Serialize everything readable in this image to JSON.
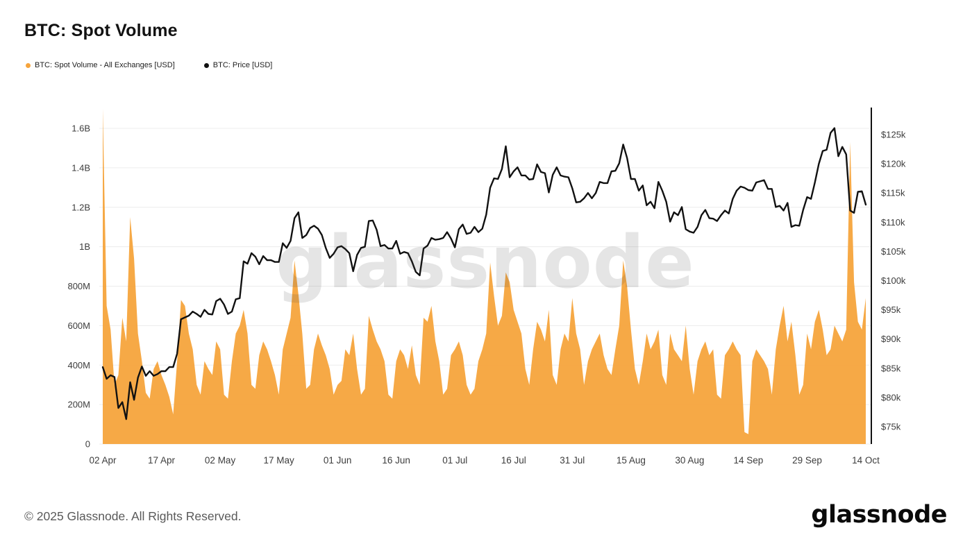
{
  "header": {
    "title": "BTC: Spot Volume"
  },
  "legend": [
    {
      "label": "BTC: Spot Volume - All Exchanges [USD]",
      "color": "#F6A43C"
    },
    {
      "label": "BTC: Price [USD]",
      "color": "#111111"
    }
  ],
  "watermark": "glassnode",
  "footer": {
    "copyright": "© 2025 Glassnode. All Rights Reserved.",
    "brand": "glassnode"
  },
  "chart_data": {
    "type": "area",
    "title": "BTC: Spot Volume",
    "grid": "horizontal-only",
    "legend_position": "top-left",
    "x_tick_labels": [
      "02 Apr",
      "17 Apr",
      "02 May",
      "17 May",
      "01 Jun",
      "16 Jun",
      "01 Jul",
      "16 Jul",
      "31 Jul",
      "15 Aug",
      "30 Aug",
      "14 Sep",
      "29 Sep",
      "14 Oct"
    ],
    "x_tick_indices": [
      0,
      15,
      30,
      45,
      60,
      75,
      90,
      105,
      120,
      135,
      150,
      165,
      180,
      195
    ],
    "volume_axis": {
      "side": "left",
      "unit": "USD",
      "ylim_millions": [
        0,
        1600
      ],
      "ticks": [
        0,
        200,
        400,
        600,
        800,
        1000,
        1200,
        1400,
        1600
      ],
      "tick_labels": [
        "0",
        "200M",
        "400M",
        "600M",
        "800M",
        "1B",
        "1.2B",
        "1.4B",
        "1.6B"
      ]
    },
    "price_axis": {
      "side": "right",
      "unit": "USD",
      "ylim_thousands": [
        75,
        125
      ],
      "ticks": [
        75,
        80,
        85,
        90,
        95,
        100,
        105,
        110,
        115,
        120,
        125
      ],
      "tick_labels": [
        "$75k",
        "$80k",
        "$85k",
        "$90k",
        "$95k",
        "$100k",
        "$105k",
        "$110k",
        "$115k",
        "$120k",
        "$125k"
      ]
    },
    "series": [
      {
        "name": "BTC: Spot Volume - All Exchanges [USD]",
        "type": "area",
        "color": "#F6A43C",
        "unit": "millions USD",
        "values": [
          1700,
          700,
          580,
          300,
          350,
          640,
          520,
          1150,
          940,
          560,
          420,
          260,
          230,
          380,
          420,
          350,
          300,
          240,
          150,
          420,
          730,
          700,
          560,
          480,
          300,
          250,
          420,
          380,
          350,
          520,
          480,
          250,
          230,
          420,
          560,
          600,
          680,
          560,
          300,
          280,
          450,
          520,
          480,
          420,
          350,
          250,
          480,
          560,
          640,
          930,
          760,
          560,
          280,
          300,
          480,
          560,
          500,
          450,
          380,
          250,
          300,
          320,
          480,
          450,
          560,
          380,
          250,
          280,
          650,
          580,
          520,
          480,
          420,
          250,
          230,
          420,
          480,
          450,
          380,
          500,
          350,
          300,
          640,
          620,
          700,
          520,
          420,
          250,
          280,
          450,
          480,
          520,
          450,
          300,
          250,
          280,
          420,
          480,
          560,
          920,
          750,
          600,
          650,
          870,
          820,
          680,
          620,
          560,
          380,
          300,
          480,
          620,
          580,
          520,
          680,
          350,
          300,
          480,
          560,
          520,
          740,
          560,
          480,
          300,
          420,
          480,
          520,
          560,
          450,
          380,
          350,
          480,
          600,
          930,
          800,
          580,
          380,
          300,
          420,
          560,
          480,
          520,
          580,
          350,
          300,
          560,
          480,
          450,
          420,
          600,
          380,
          250,
          420,
          480,
          520,
          450,
          480,
          250,
          230,
          450,
          480,
          520,
          480,
          450,
          60,
          50,
          420,
          480,
          450,
          420,
          380,
          250,
          480,
          600,
          700,
          520,
          620,
          450,
          250,
          300,
          560,
          480,
          620,
          680,
          580,
          450,
          480,
          600,
          560,
          520,
          580,
          1530,
          820,
          620,
          580,
          740
        ]
      },
      {
        "name": "BTC: Price [USD]",
        "type": "line",
        "color": "#111111",
        "unit": "thousands USD",
        "values": [
          85.2,
          83.2,
          83.8,
          83.5,
          78.2,
          79.2,
          76.3,
          82.6,
          79.6,
          83.4,
          85.3,
          83.7,
          84.5,
          83.7,
          84.0,
          84.5,
          84.5,
          85.2,
          85.2,
          87.5,
          93.4,
          93.7,
          94.0,
          94.7,
          94.3,
          93.8,
          95.0,
          94.3,
          94.2,
          96.5,
          96.9,
          95.9,
          94.3,
          94.7,
          96.8,
          97.0,
          103.3,
          102.9,
          104.7,
          104.1,
          102.8,
          104.2,
          103.5,
          103.5,
          103.2,
          103.2,
          106.4,
          105.6,
          106.8,
          110.7,
          111.7,
          107.3,
          107.8,
          109.0,
          109.4,
          108.9,
          107.8,
          105.6,
          103.9,
          104.6,
          105.7,
          105.9,
          105.4,
          104.7,
          101.6,
          104.4,
          105.6,
          105.8,
          110.2,
          110.3,
          108.7,
          105.9,
          106.1,
          105.5,
          105.5,
          106.8,
          104.6,
          104.9,
          104.7,
          103.3,
          101.5,
          100.9,
          105.5,
          106.0,
          107.3,
          107.0,
          107.1,
          107.3,
          108.3,
          107.2,
          105.7,
          108.8,
          109.6,
          108.0,
          108.2,
          109.2,
          108.3,
          108.9,
          111.3,
          115.9,
          117.5,
          117.4,
          119.1,
          123.0,
          117.7,
          118.7,
          119.4,
          118.0,
          118.0,
          117.3,
          117.4,
          119.9,
          118.6,
          118.4,
          115.1,
          118.1,
          119.4,
          118.0,
          117.8,
          117.7,
          115.8,
          113.4,
          113.5,
          114.1,
          115.0,
          114.1,
          115.0,
          116.9,
          116.7,
          116.7,
          118.7,
          118.8,
          120.1,
          123.3,
          121.0,
          117.4,
          117.4,
          115.4,
          116.3,
          112.9,
          113.5,
          112.4,
          116.9,
          115.4,
          113.5,
          110.1,
          111.7,
          111.2,
          112.6,
          108.8,
          108.4,
          108.2,
          109.2,
          111.2,
          112.1,
          110.7,
          110.6,
          110.2,
          111.2,
          112.0,
          111.5,
          114.0,
          115.4,
          116.1,
          115.9,
          115.5,
          115.4,
          116.8,
          117.0,
          117.2,
          115.7,
          115.7,
          112.6,
          112.8,
          112.0,
          113.3,
          109.2,
          109.5,
          109.4,
          112.1,
          114.3,
          114.0,
          116.8,
          120.0,
          122.2,
          122.4,
          125.3,
          126.1,
          121.3,
          122.9,
          121.6,
          112.0,
          111.6,
          115.2,
          115.3,
          113.0
        ]
      }
    ]
  }
}
